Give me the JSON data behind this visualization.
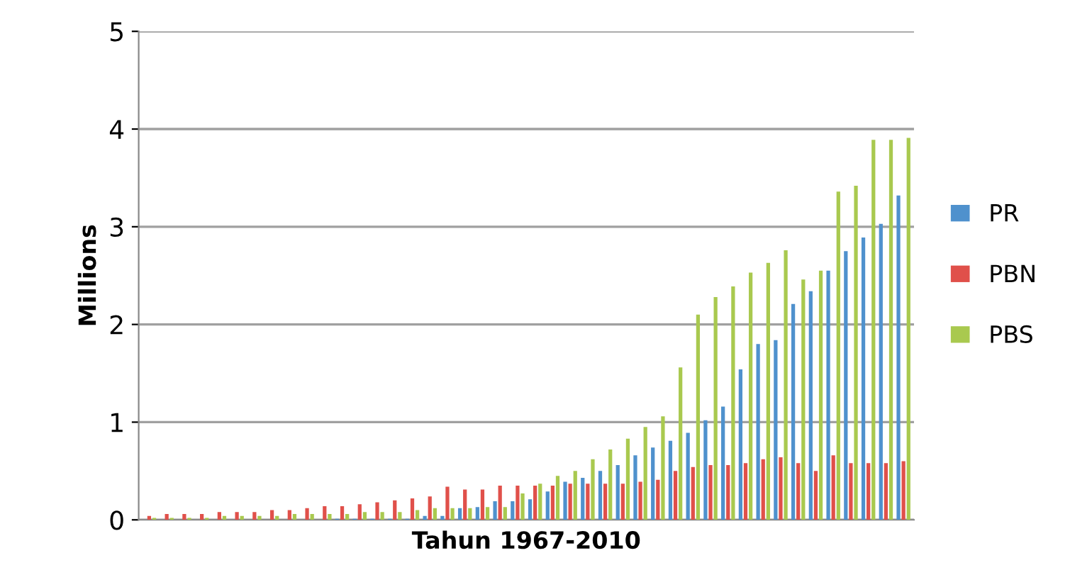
{
  "chart_data": {
    "type": "bar",
    "xlabel": "Tahun 1967-2010",
    "ylabel": "Millions",
    "categories": [
      null,
      null,
      null,
      null,
      null,
      null,
      null,
      null,
      null,
      null,
      null,
      null,
      null,
      null,
      null,
      null,
      null,
      null,
      null,
      null,
      null,
      null,
      null,
      null,
      null,
      null,
      null,
      null,
      null,
      null,
      null,
      null,
      null,
      null,
      null,
      null,
      null,
      null,
      null,
      null,
      null,
      null,
      null,
      null
    ],
    "series": [
      {
        "name": "PR",
        "color": "#4f91cd",
        "values": [
          0,
          0,
          0,
          0,
          0,
          0,
          0,
          0,
          0,
          0,
          0,
          0.01,
          0.01,
          0.01,
          0.01,
          0.01,
          0.04,
          0.04,
          0.12,
          0.13,
          0.19,
          0.19,
          0.21,
          0.29,
          0.39,
          0.43,
          0.5,
          0.56,
          0.66,
          0.74,
          0.81,
          0.89,
          1.02,
          1.16,
          1.54,
          1.8,
          1.84,
          2.21,
          2.34,
          2.55,
          2.75,
          2.89,
          3.03,
          3.32
        ]
      },
      {
        "name": "PBN",
        "color": "#e0504a",
        "values": [
          0.04,
          0.06,
          0.06,
          0.06,
          0.08,
          0.08,
          0.08,
          0.1,
          0.1,
          0.12,
          0.14,
          0.14,
          0.16,
          0.18,
          0.2,
          0.22,
          0.24,
          0.34,
          0.31,
          0.31,
          0.35,
          0.35,
          0.35,
          0.35,
          0.37,
          0.37,
          0.37,
          0.37,
          0.39,
          0.41,
          0.5,
          0.54,
          0.56,
          0.56,
          0.58,
          0.62,
          0.64,
          0.58,
          0.5,
          0.66,
          0.58,
          0.58,
          0.58,
          0.6
        ]
      },
      {
        "name": "PBS",
        "color": "#a9c94f",
        "values": [
          0.02,
          0.02,
          0.02,
          0.02,
          0.04,
          0.04,
          0.04,
          0.04,
          0.06,
          0.06,
          0.06,
          0.06,
          0.08,
          0.08,
          0.08,
          0.1,
          0.12,
          0.12,
          0.12,
          0.13,
          0.13,
          0.27,
          0.37,
          0.45,
          0.5,
          0.62,
          0.72,
          0.83,
          0.95,
          1.06,
          1.56,
          2.1,
          2.28,
          2.39,
          2.53,
          2.63,
          2.76,
          2.46,
          2.55,
          3.36,
          3.42,
          3.89,
          3.89,
          3.91
        ]
      }
    ],
    "ylim": [
      0,
      5
    ],
    "yticks": [
      0,
      1,
      2,
      3,
      4,
      5
    ],
    "grid": "y",
    "legend": "right"
  }
}
